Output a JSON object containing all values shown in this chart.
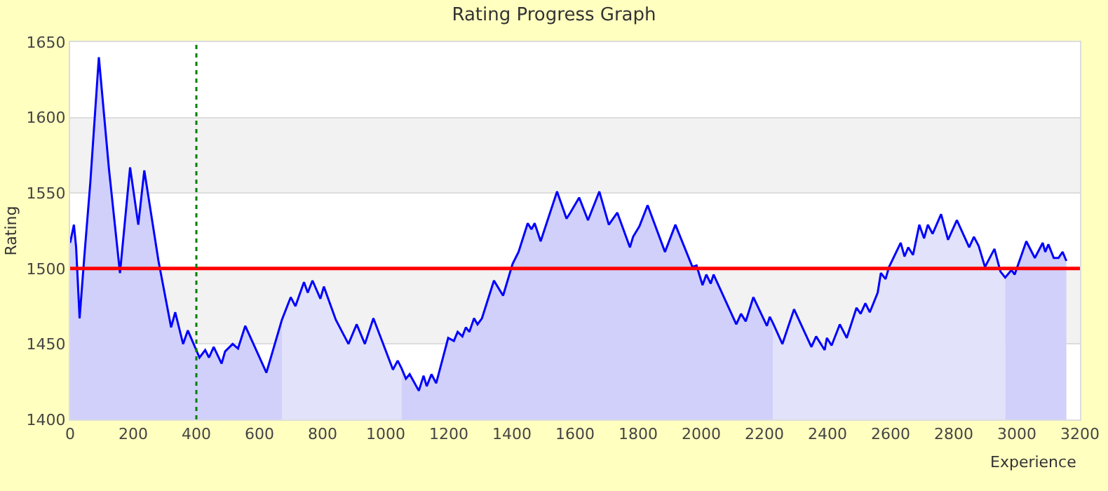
{
  "chart_data": {
    "type": "line",
    "title": "Rating Progress Graph",
    "xlabel": "Experience",
    "ylabel": "Rating",
    "xlim": [
      0,
      3200
    ],
    "xticks": [
      0,
      200,
      400,
      600,
      800,
      1000,
      1200,
      1400,
      1600,
      1800,
      2000,
      2200,
      2400,
      2600,
      2800,
      3000,
      3200
    ],
    "ylim": [
      1400,
      1650
    ],
    "yticks": [
      1400,
      1450,
      1500,
      1550,
      1600,
      1650
    ],
    "grid": "y",
    "marker": "none",
    "line_style": "solid",
    "series": [
      {
        "type": "area",
        "color": "#d0d0fa",
        "x": [
          0,
          12,
          19,
          30,
          45,
          64,
          91,
          123,
          158,
          190,
          216,
          235,
          280,
          320,
          333,
          358,
          373,
          410,
          428,
          440,
          455,
          480,
          491,
          515,
          532,
          555,
          622,
          671
        ],
        "values": [
          1517,
          1529,
          1514,
          1467,
          1508,
          1557,
          1640,
          1566,
          1497,
          1567,
          1529,
          1565,
          1505,
          1461,
          1471,
          1450,
          1459,
          1441,
          1446,
          1441,
          1448,
          1437,
          1445,
          1450,
          1447,
          1462,
          1431,
          1466
        ]
      },
      {
        "type": "area",
        "color": "#e2e2fa",
        "x": [
          671,
          699,
          714,
          741,
          753,
          768,
          793,
          804,
          842,
          882,
          908,
          934,
          961,
          1023,
          1038,
          1050
        ],
        "values": [
          1466,
          1481,
          1475,
          1491,
          1484,
          1492,
          1480,
          1488,
          1466,
          1450,
          1463,
          1450,
          1467,
          1433,
          1439,
          1434
        ]
      },
      {
        "type": "area",
        "color": "#d0d0fa",
        "x": [
          1050,
          1064,
          1076,
          1105,
          1120,
          1130,
          1145,
          1160,
          1198,
          1216,
          1228,
          1243,
          1254,
          1265,
          1280,
          1291,
          1305,
          1343,
          1372,
          1402,
          1421,
          1450,
          1462,
          1472,
          1491,
          1543,
          1573,
          1585,
          1613,
          1641,
          1677,
          1707,
          1734,
          1774,
          1784,
          1804,
          1830,
          1885,
          1918,
          1972,
          1985,
          2004,
          2016,
          2030,
          2039,
          2111,
          2126,
          2141,
          2165,
          2208,
          2217,
          2227
        ],
        "values": [
          1434,
          1427,
          1430,
          1419,
          1429,
          1422,
          1430,
          1424,
          1454,
          1452,
          1458,
          1455,
          1461,
          1458,
          1467,
          1463,
          1467,
          1492,
          1482,
          1503,
          1511,
          1530,
          1526,
          1530,
          1518,
          1551,
          1533,
          1537,
          1547,
          1532,
          1551,
          1529,
          1537,
          1514,
          1521,
          1528,
          1542,
          1511,
          1529,
          1501,
          1502,
          1489,
          1496,
          1490,
          1496,
          1463,
          1470,
          1465,
          1481,
          1462,
          1468,
          1464
        ]
      },
      {
        "type": "area",
        "color": "#e2e2fa",
        "x": [
          2227,
          2257,
          2294,
          2349,
          2364,
          2391,
          2398,
          2413,
          2439,
          2461,
          2492,
          2505,
          2520,
          2534,
          2559,
          2569,
          2584,
          2595,
          2632,
          2644,
          2656,
          2671,
          2691,
          2706,
          2718,
          2733,
          2760,
          2782,
          2810,
          2849,
          2864,
          2879,
          2899,
          2929,
          2948,
          2963
        ],
        "values": [
          1464,
          1450,
          1473,
          1448,
          1455,
          1446,
          1454,
          1449,
          1463,
          1454,
          1474,
          1470,
          1477,
          1471,
          1484,
          1497,
          1493,
          1501,
          1517,
          1508,
          1514,
          1509,
          1529,
          1520,
          1529,
          1523,
          1536,
          1519,
          1532,
          1514,
          1521,
          1515,
          1501,
          1513,
          1498,
          1494
        ]
      },
      {
        "type": "area",
        "color": "#d0d0fa",
        "x": [
          2963,
          2983,
          2993,
          3030,
          3057,
          3082,
          3090,
          3100,
          3117,
          3132,
          3145,
          3157
        ],
        "values": [
          1494,
          1499,
          1496,
          1518,
          1507,
          1517,
          1511,
          1516,
          1507,
          1507,
          1511,
          1505
        ]
      },
      {
        "color": "#0000ff",
        "x": [
          0,
          12,
          19,
          30,
          45,
          64,
          91,
          123,
          158,
          190,
          216,
          235,
          280,
          320,
          333,
          358,
          373,
          410,
          428,
          440,
          455,
          480,
          491,
          515,
          532,
          555,
          622,
          671,
          699,
          714,
          741,
          753,
          768,
          793,
          804,
          842,
          882,
          908,
          934,
          961,
          1023,
          1038,
          1050,
          1064,
          1076,
          1105,
          1120,
          1130,
          1145,
          1160,
          1198,
          1216,
          1228,
          1243,
          1254,
          1265,
          1280,
          1291,
          1305,
          1343,
          1372,
          1402,
          1421,
          1450,
          1462,
          1472,
          1491,
          1543,
          1573,
          1585,
          1613,
          1641,
          1677,
          1707,
          1734,
          1774,
          1784,
          1804,
          1830,
          1885,
          1918,
          1972,
          1985,
          2004,
          2016,
          2030,
          2039,
          2111,
          2126,
          2141,
          2165,
          2208,
          2217,
          2227,
          2257,
          2294,
          2349,
          2364,
          2391,
          2398,
          2413,
          2439,
          2461,
          2492,
          2505,
          2520,
          2534,
          2559,
          2569,
          2584,
          2595,
          2632,
          2644,
          2656,
          2671,
          2691,
          2706,
          2718,
          2733,
          2760,
          2782,
          2810,
          2849,
          2864,
          2879,
          2899,
          2929,
          2948,
          2963,
          2983,
          2993,
          3030,
          3057,
          3082,
          3090,
          3100,
          3117,
          3132,
          3145,
          3157
        ],
        "values": [
          1517,
          1529,
          1514,
          1467,
          1508,
          1557,
          1640,
          1566,
          1497,
          1567,
          1529,
          1565,
          1505,
          1461,
          1471,
          1450,
          1459,
          1441,
          1446,
          1441,
          1448,
          1437,
          1445,
          1450,
          1447,
          1462,
          1431,
          1466,
          1481,
          1475,
          1491,
          1484,
          1492,
          1480,
          1488,
          1466,
          1450,
          1463,
          1450,
          1467,
          1433,
          1439,
          1434,
          1427,
          1430,
          1419,
          1429,
          1422,
          1430,
          1424,
          1454,
          1452,
          1458,
          1455,
          1461,
          1458,
          1467,
          1463,
          1467,
          1492,
          1482,
          1503,
          1511,
          1530,
          1526,
          1530,
          1518,
          1551,
          1533,
          1537,
          1547,
          1532,
          1551,
          1529,
          1537,
          1514,
          1521,
          1528,
          1542,
          1511,
          1529,
          1501,
          1502,
          1489,
          1496,
          1490,
          1496,
          1463,
          1470,
          1465,
          1481,
          1462,
          1468,
          1464,
          1450,
          1473,
          1448,
          1455,
          1446,
          1454,
          1449,
          1463,
          1454,
          1474,
          1470,
          1477,
          1471,
          1484,
          1497,
          1493,
          1501,
          1517,
          1508,
          1514,
          1509,
          1529,
          1520,
          1529,
          1523,
          1536,
          1519,
          1532,
          1514,
          1521,
          1515,
          1501,
          1513,
          1498,
          1494,
          1499,
          1496,
          1518,
          1507,
          1517,
          1511,
          1516,
          1507,
          1507,
          1511,
          1505
        ]
      }
    ],
    "bands": [
      {
        "axis": "y",
        "from": 1450,
        "to": 1500,
        "color": "#f2f2f2"
      },
      {
        "axis": "y",
        "from": 1550,
        "to": 1600,
        "color": "#f2f2f2"
      }
    ],
    "ref_lines": [
      {
        "axis": "y",
        "value": 1500,
        "color": "#ff0000",
        "line_style": "solid"
      },
      {
        "axis": "x",
        "value": 400,
        "color": "#008000",
        "line_style": "dotted"
      }
    ]
  }
}
